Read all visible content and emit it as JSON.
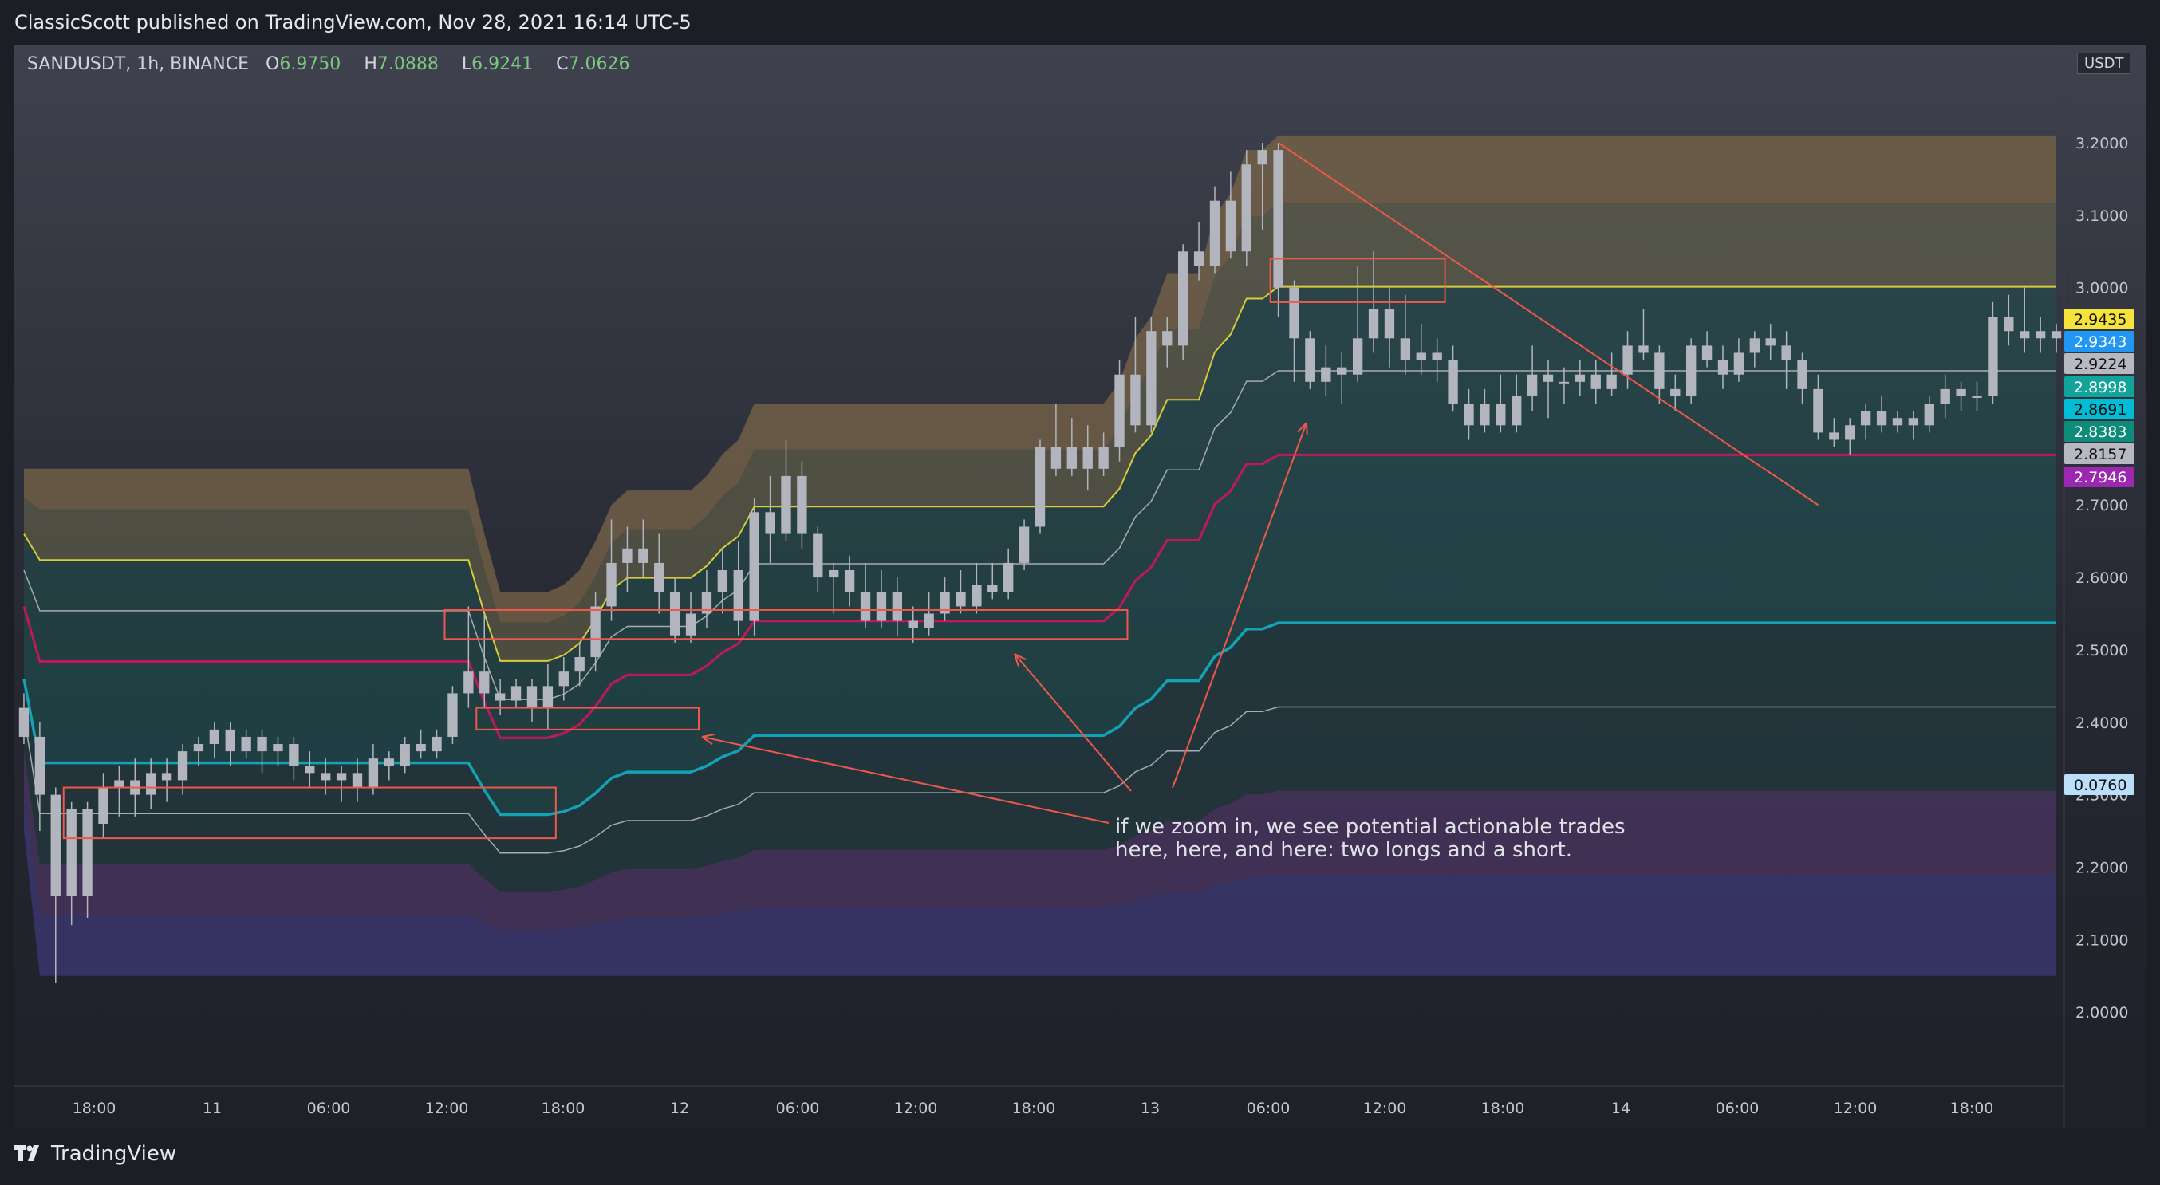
{
  "header": {
    "published": "ClassicScott published on TradingView.com, Nov 28, 2021 16:14 UTC-5"
  },
  "legend": {
    "symbol": "SANDUSDT, 1h, BINANCE",
    "o_label": "O",
    "o": "6.9750",
    "h_label": "H",
    "h": "7.0888",
    "l_label": "L",
    "l": "6.9241",
    "c_label": "C",
    "c": "7.0626"
  },
  "currency": "USDT",
  "footer": {
    "brand": "TradingView"
  },
  "annotation": {
    "line1": "if we zoom in, we see potential actionable trades",
    "line2": "here, here, and here: two longs and a short."
  },
  "chart_data": {
    "type": "candlestick",
    "ylim": [
      1.9,
      3.32
    ],
    "y_ticks": [
      "2.0000",
      "2.1000",
      "2.2000",
      "2.3000",
      "2.4000",
      "2.5000",
      "2.6000",
      "2.7000",
      "2.8000",
      "2.9000",
      "3.0000",
      "3.1000",
      "3.2000"
    ],
    "x_ticks": [
      "18:00",
      "11",
      "06:00",
      "12:00",
      "18:00",
      "12",
      "06:00",
      "12:00",
      "18:00",
      "13",
      "06:00",
      "12:00",
      "18:00",
      "14",
      "06:00",
      "12:00",
      "18:00"
    ],
    "price_labels": [
      {
        "value": "2.9435",
        "color": "#f5e33b",
        "text": "#111111"
      },
      {
        "value": "2.9343",
        "color": "#2196f3",
        "text": "#ffffff"
      },
      {
        "value": "2.9224",
        "color": "#b7b9c0",
        "text": "#111111"
      },
      {
        "value": "2.8998",
        "color": "#12a39a",
        "text": "#ffffff"
      },
      {
        "value": "2.8691",
        "color": "#00bcd4",
        "text": "#111111"
      },
      {
        "value": "2.8383",
        "color": "#0f8b7a",
        "text": "#ffffff"
      },
      {
        "value": "2.8157",
        "color": "#b7b9c0",
        "text": "#111111"
      },
      {
        "value": "2.7946",
        "color": "#9c27b0",
        "text": "#ffffff"
      },
      {
        "value": "0.0760",
        "color": "#bbdefb",
        "text": "#111111"
      }
    ],
    "candles": [
      [
        2.42,
        2.38,
        2.44,
        2.37
      ],
      [
        2.38,
        2.3,
        2.4,
        2.25
      ],
      [
        2.3,
        2.16,
        2.31,
        2.04
      ],
      [
        2.16,
        2.28,
        2.29,
        2.12
      ],
      [
        2.28,
        2.16,
        2.29,
        2.13
      ],
      [
        2.26,
        2.31,
        2.33,
        2.24
      ],
      [
        2.31,
        2.32,
        2.34,
        2.27
      ],
      [
        2.32,
        2.3,
        2.35,
        2.27
      ],
      [
        2.3,
        2.33,
        2.35,
        2.28
      ],
      [
        2.33,
        2.32,
        2.35,
        2.29
      ],
      [
        2.32,
        2.36,
        2.37,
        2.3
      ],
      [
        2.36,
        2.37,
        2.38,
        2.34
      ],
      [
        2.37,
        2.39,
        2.4,
        2.35
      ],
      [
        2.39,
        2.36,
        2.4,
        2.34
      ],
      [
        2.36,
        2.38,
        2.39,
        2.35
      ],
      [
        2.38,
        2.36,
        2.39,
        2.33
      ],
      [
        2.36,
        2.37,
        2.38,
        2.34
      ],
      [
        2.37,
        2.34,
        2.38,
        2.32
      ],
      [
        2.34,
        2.33,
        2.36,
        2.31
      ],
      [
        2.33,
        2.32,
        2.35,
        2.3
      ],
      [
        2.32,
        2.33,
        2.34,
        2.29
      ],
      [
        2.33,
        2.31,
        2.35,
        2.29
      ],
      [
        2.31,
        2.35,
        2.37,
        2.3
      ],
      [
        2.35,
        2.34,
        2.36,
        2.32
      ],
      [
        2.34,
        2.37,
        2.38,
        2.33
      ],
      [
        2.37,
        2.36,
        2.39,
        2.35
      ],
      [
        2.36,
        2.38,
        2.39,
        2.35
      ],
      [
        2.38,
        2.44,
        2.45,
        2.37
      ],
      [
        2.44,
        2.47,
        2.56,
        2.42
      ],
      [
        2.47,
        2.44,
        2.55,
        2.42
      ],
      [
        2.44,
        2.43,
        2.46,
        2.41
      ],
      [
        2.43,
        2.45,
        2.46,
        2.42
      ],
      [
        2.45,
        2.42,
        2.46,
        2.4
      ],
      [
        2.42,
        2.45,
        2.48,
        2.39
      ],
      [
        2.45,
        2.47,
        2.49,
        2.43
      ],
      [
        2.47,
        2.49,
        2.51,
        2.45
      ],
      [
        2.49,
        2.56,
        2.58,
        2.47
      ],
      [
        2.56,
        2.62,
        2.68,
        2.54
      ],
      [
        2.62,
        2.64,
        2.67,
        2.58
      ],
      [
        2.64,
        2.62,
        2.68,
        2.6
      ],
      [
        2.62,
        2.58,
        2.66,
        2.55
      ],
      [
        2.58,
        2.52,
        2.6,
        2.51
      ],
      [
        2.52,
        2.55,
        2.58,
        2.51
      ],
      [
        2.55,
        2.58,
        2.61,
        2.53
      ],
      [
        2.58,
        2.61,
        2.64,
        2.55
      ],
      [
        2.61,
        2.54,
        2.65,
        2.52
      ],
      [
        2.54,
        2.69,
        2.71,
        2.52
      ],
      [
        2.69,
        2.66,
        2.74,
        2.62
      ],
      [
        2.66,
        2.74,
        2.79,
        2.65
      ],
      [
        2.74,
        2.66,
        2.76,
        2.64
      ],
      [
        2.66,
        2.6,
        2.67,
        2.58
      ],
      [
        2.6,
        2.61,
        2.62,
        2.55
      ],
      [
        2.61,
        2.58,
        2.63,
        2.56
      ],
      [
        2.58,
        2.54,
        2.62,
        2.53
      ],
      [
        2.54,
        2.58,
        2.61,
        2.53
      ],
      [
        2.58,
        2.54,
        2.6,
        2.52
      ],
      [
        2.54,
        2.53,
        2.56,
        2.51
      ],
      [
        2.53,
        2.55,
        2.58,
        2.52
      ],
      [
        2.55,
        2.58,
        2.6,
        2.54
      ],
      [
        2.58,
        2.56,
        2.61,
        2.55
      ],
      [
        2.56,
        2.59,
        2.62,
        2.55
      ],
      [
        2.59,
        2.58,
        2.62,
        2.57
      ],
      [
        2.58,
        2.62,
        2.64,
        2.57
      ],
      [
        2.62,
        2.67,
        2.68,
        2.61
      ],
      [
        2.67,
        2.78,
        2.79,
        2.66
      ],
      [
        2.78,
        2.75,
        2.84,
        2.74
      ],
      [
        2.75,
        2.78,
        2.82,
        2.74
      ],
      [
        2.78,
        2.75,
        2.81,
        2.72
      ],
      [
        2.75,
        2.78,
        2.8,
        2.74
      ],
      [
        2.78,
        2.88,
        2.9,
        2.76
      ],
      [
        2.88,
        2.81,
        2.96,
        2.8
      ],
      [
        2.81,
        2.94,
        2.96,
        2.8
      ],
      [
        2.94,
        2.92,
        2.96,
        2.89
      ],
      [
        2.92,
        3.05,
        3.06,
        2.9
      ],
      [
        3.05,
        3.03,
        3.09,
        3.01
      ],
      [
        3.03,
        3.12,
        3.14,
        3.02
      ],
      [
        3.12,
        3.05,
        3.16,
        3.04
      ],
      [
        3.05,
        3.17,
        3.19,
        3.03
      ],
      [
        3.17,
        3.19,
        3.2,
        3.08
      ],
      [
        3.19,
        3.0,
        3.2,
        2.96
      ],
      [
        3.0,
        2.93,
        3.01,
        2.87
      ],
      [
        2.93,
        2.87,
        2.94,
        2.86
      ],
      [
        2.87,
        2.89,
        2.92,
        2.85
      ],
      [
        2.89,
        2.88,
        2.91,
        2.84
      ],
      [
        2.88,
        2.93,
        3.03,
        2.87
      ],
      [
        2.93,
        2.97,
        3.05,
        2.91
      ],
      [
        2.97,
        2.93,
        3.0,
        2.89
      ],
      [
        2.93,
        2.9,
        2.99,
        2.88
      ],
      [
        2.9,
        2.91,
        2.95,
        2.88
      ],
      [
        2.91,
        2.9,
        2.93,
        2.87
      ],
      [
        2.9,
        2.84,
        2.92,
        2.83
      ],
      [
        2.84,
        2.81,
        2.86,
        2.79
      ],
      [
        2.81,
        2.84,
        2.86,
        2.8
      ],
      [
        2.84,
        2.81,
        2.88,
        2.8
      ],
      [
        2.81,
        2.85,
        2.88,
        2.8
      ],
      [
        2.85,
        2.88,
        2.92,
        2.83
      ],
      [
        2.88,
        2.87,
        2.9,
        2.82
      ],
      [
        2.87,
        2.87,
        2.89,
        2.84
      ],
      [
        2.87,
        2.88,
        2.9,
        2.85
      ],
      [
        2.88,
        2.86,
        2.9,
        2.84
      ],
      [
        2.86,
        2.88,
        2.91,
        2.85
      ],
      [
        2.88,
        2.92,
        2.94,
        2.86
      ],
      [
        2.92,
        2.91,
        2.97,
        2.9
      ],
      [
        2.91,
        2.86,
        2.92,
        2.84
      ],
      [
        2.86,
        2.85,
        2.88,
        2.83
      ],
      [
        2.85,
        2.92,
        2.93,
        2.84
      ],
      [
        2.92,
        2.9,
        2.94,
        2.89
      ],
      [
        2.9,
        2.88,
        2.92,
        2.86
      ],
      [
        2.88,
        2.91,
        2.93,
        2.87
      ],
      [
        2.91,
        2.93,
        2.94,
        2.89
      ],
      [
        2.93,
        2.92,
        2.95,
        2.9
      ],
      [
        2.92,
        2.9,
        2.94,
        2.86
      ],
      [
        2.9,
        2.86,
        2.91,
        2.84
      ],
      [
        2.86,
        2.8,
        2.88,
        2.79
      ],
      [
        2.8,
        2.79,
        2.82,
        2.78
      ],
      [
        2.79,
        2.81,
        2.82,
        2.77
      ],
      [
        2.81,
        2.83,
        2.84,
        2.79
      ],
      [
        2.83,
        2.81,
        2.85,
        2.8
      ],
      [
        2.81,
        2.82,
        2.83,
        2.8
      ],
      [
        2.82,
        2.81,
        2.83,
        2.79
      ],
      [
        2.81,
        2.84,
        2.85,
        2.8
      ],
      [
        2.84,
        2.86,
        2.88,
        2.82
      ],
      [
        2.86,
        2.85,
        2.87,
        2.83
      ],
      [
        2.85,
        2.85,
        2.87,
        2.83
      ],
      [
        2.85,
        2.96,
        2.98,
        2.84
      ],
      [
        2.96,
        2.94,
        2.99,
        2.92
      ],
      [
        2.94,
        2.93,
        3.0,
        2.91
      ],
      [
        2.93,
        2.94,
        2.96,
        2.91
      ],
      [
        2.94,
        2.93,
        2.95,
        2.91
      ]
    ],
    "bands": {
      "top": [
        2.75,
        2.75,
        2.75,
        2.75,
        2.75,
        2.75,
        2.75,
        2.75,
        2.75,
        2.75,
        2.75,
        2.75,
        2.75,
        2.75,
        2.75,
        2.75,
        2.75,
        2.75,
        2.75,
        2.75,
        2.75,
        2.75,
        2.75,
        2.75,
        2.75,
        2.75,
        2.75,
        2.75,
        2.75,
        2.66,
        2.58,
        2.58,
        2.58,
        2.58,
        2.59,
        2.61,
        2.65,
        2.7,
        2.72,
        2.72,
        2.72,
        2.72,
        2.72,
        2.74,
        2.77,
        2.79,
        2.84,
        2.84,
        2.84,
        2.84,
        2.84,
        2.84,
        2.84,
        2.84,
        2.84,
        2.84,
        2.84,
        2.84,
        2.84,
        2.84,
        2.84,
        2.84,
        2.84,
        2.84,
        2.84,
        2.84,
        2.84,
        2.84,
        2.84,
        2.87,
        2.93,
        2.96,
        3.02,
        3.02,
        3.02,
        3.1,
        3.13,
        3.19,
        3.19,
        3.21,
        3.21,
        3.21,
        3.21,
        3.21,
        3.21,
        3.21,
        3.21,
        3.21,
        3.21,
        3.21,
        3.21,
        3.21,
        3.21,
        3.21,
        3.21,
        3.21,
        3.21,
        3.21,
        3.21,
        3.21,
        3.21,
        3.21,
        3.21,
        3.21,
        3.21,
        3.21,
        3.21,
        3.21,
        3.21,
        3.21,
        3.21,
        3.21,
        3.21,
        3.21,
        3.21,
        3.21,
        3.21,
        3.21,
        3.21,
        3.21,
        3.21,
        3.21,
        3.21,
        3.21,
        3.21,
        3.21,
        3.21,
        3.21,
        3.21,
        3.21,
        3.21,
        3.21,
        3.21,
        3.21,
        3.21,
        3.05,
        3.05,
        3.05,
        3.05,
        3.03,
        3.02
      ],
      "bottom": [
        2.25,
        2.05,
        2.05,
        2.05,
        2.05,
        2.05,
        2.05,
        2.05,
        2.05,
        2.05,
        2.05,
        2.05,
        2.05,
        2.05,
        2.05,
        2.05,
        2.05,
        2.05,
        2.05,
        2.05,
        2.05,
        2.05,
        2.05,
        2.05,
        2.05,
        2.05,
        2.05,
        2.05,
        2.05,
        2.05,
        2.05,
        2.05,
        2.05,
        2.05,
        2.05,
        2.05,
        2.05,
        2.05,
        2.05,
        2.05,
        2.05,
        2.05,
        2.05,
        2.05,
        2.05,
        2.05,
        2.05,
        2.05,
        2.05,
        2.05,
        2.05,
        2.05,
        2.05,
        2.05,
        2.05,
        2.05,
        2.05,
        2.05,
        2.05,
        2.05,
        2.05,
        2.05,
        2.05,
        2.05,
        2.05,
        2.05,
        2.05,
        2.05,
        2.05,
        2.05,
        2.05,
        2.05,
        2.05,
        2.05,
        2.05,
        2.05,
        2.05,
        2.05,
        2.05,
        2.05,
        2.05,
        2.05,
        2.05,
        2.05,
        2.05,
        2.05,
        2.05,
        2.05,
        2.05,
        2.05,
        2.05,
        2.05,
        2.05,
        2.05,
        2.05,
        2.05,
        2.05,
        2.05,
        2.05,
        2.05,
        2.05,
        2.05,
        2.05,
        2.05,
        2.05,
        2.05,
        2.05,
        2.05,
        2.05,
        2.05,
        2.05,
        2.05,
        2.05,
        2.05,
        2.05,
        2.05,
        2.05,
        2.05,
        2.05,
        2.05,
        2.05,
        2.05,
        2.05,
        2.05,
        2.05,
        2.05,
        2.05,
        2.05,
        2.05,
        2.05,
        2.05,
        2.05,
        2.05,
        2.05,
        2.05,
        2.05,
        2.05,
        2.05,
        2.05,
        2.05,
        2.05
      ]
    },
    "annotation_boxes": [
      {
        "x0": 3,
        "x1": 33,
        "y0": 2.24,
        "y1": 2.31
      },
      {
        "x0": 29,
        "x1": 42,
        "y0": 2.39,
        "y1": 2.42
      },
      {
        "x0": 27,
        "x1": 69,
        "y0": 2.515,
        "y1": 2.555
      },
      {
        "x0": 79,
        "x1": 89,
        "y0": 2.98,
        "y1": 3.04
      }
    ],
    "colors": {
      "bg_top": "#3f424e",
      "bg_bottom": "#1f2129",
      "band_brown": "#7a6548",
      "band_olive": "#6b6a4a",
      "band_teal_dark": "#20504f",
      "band_teal": "#1b5e5c",
      "band_purple": "#5a3a72",
      "band_indigo": "#3f3a7a",
      "line_yellow": "#d8cc3a",
      "line_grey": "#a9abb2",
      "line_magenta": "#c2185b",
      "line_cyan": "#14a3b5",
      "candle": "#b2b5be",
      "annotation": "#f0584b"
    }
  }
}
